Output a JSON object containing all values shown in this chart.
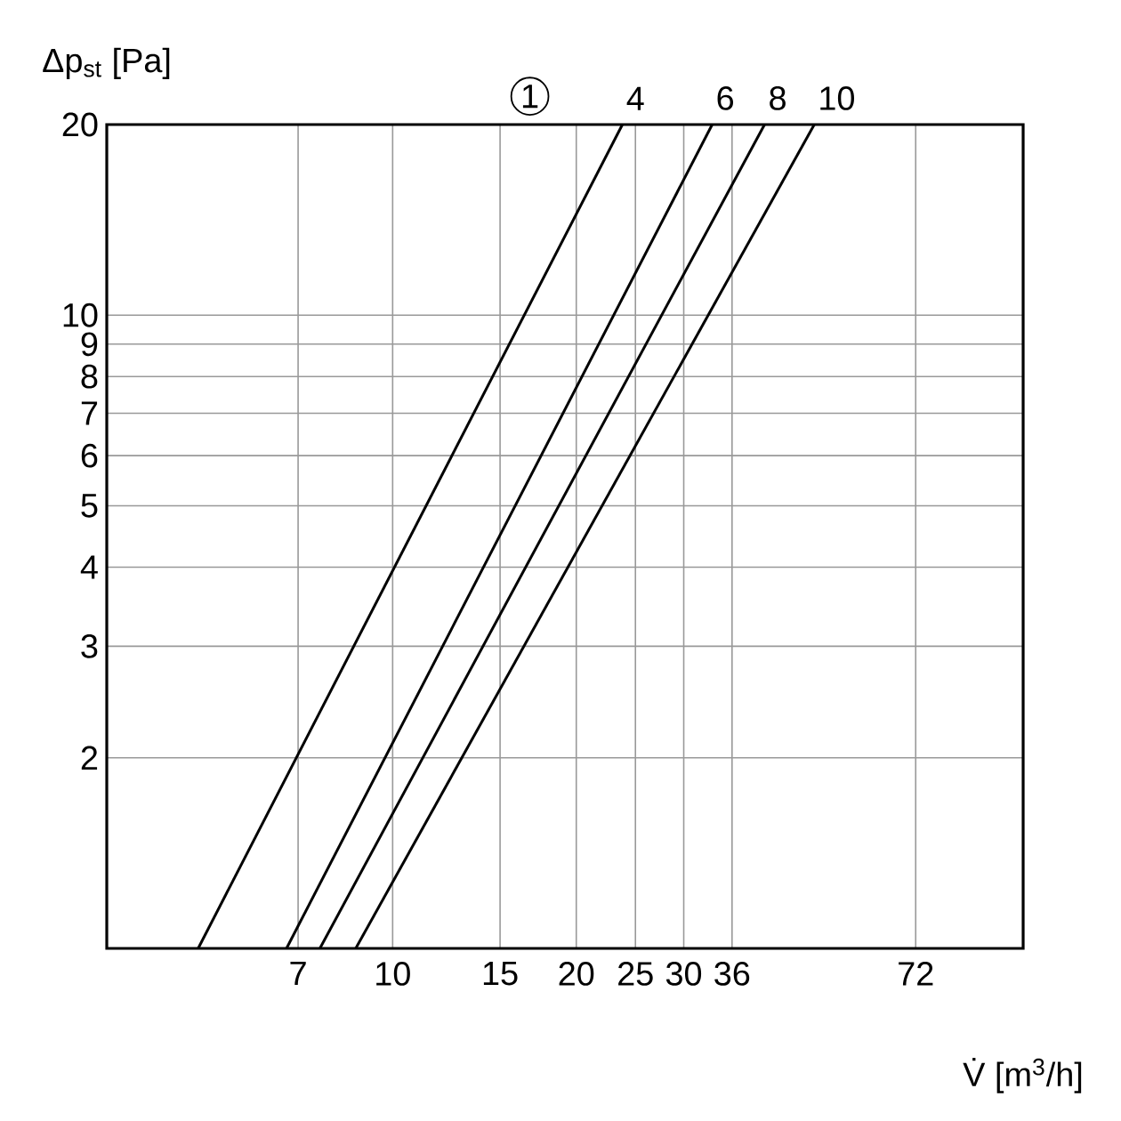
{
  "chart_data": {
    "type": "line",
    "xlabel": "V̇ [m$^{3}$/h]",
    "ylabel": "Δp$_{st}$ [Pa]",
    "annotations": [
      "1"
    ],
    "log": "xy",
    "grid": true,
    "marker": "none",
    "line_style": "solid",
    "xlim": [
      3.4,
      108
    ],
    "ylim": [
      1,
      20
    ],
    "xticks": [
      7,
      10,
      15,
      20,
      25,
      30,
      36,
      72
    ],
    "yticks": [
      2,
      3,
      4,
      5,
      6,
      7,
      8,
      9,
      10,
      20
    ],
    "series": [
      {
        "name": "4",
        "color": "#000000",
        "x": [
          4.8,
          23.8
        ],
        "values": [
          1,
          20
        ]
      },
      {
        "name": "6",
        "color": "#000000",
        "x": [
          6.7,
          33.4
        ],
        "values": [
          1,
          20
        ]
      },
      {
        "name": "8",
        "color": "#000000",
        "x": [
          7.6,
          40.7
        ],
        "values": [
          1,
          20
        ]
      },
      {
        "name": "10",
        "color": "#000000",
        "x": [
          8.7,
          49.1
        ],
        "values": [
          1,
          20
        ]
      }
    ]
  }
}
